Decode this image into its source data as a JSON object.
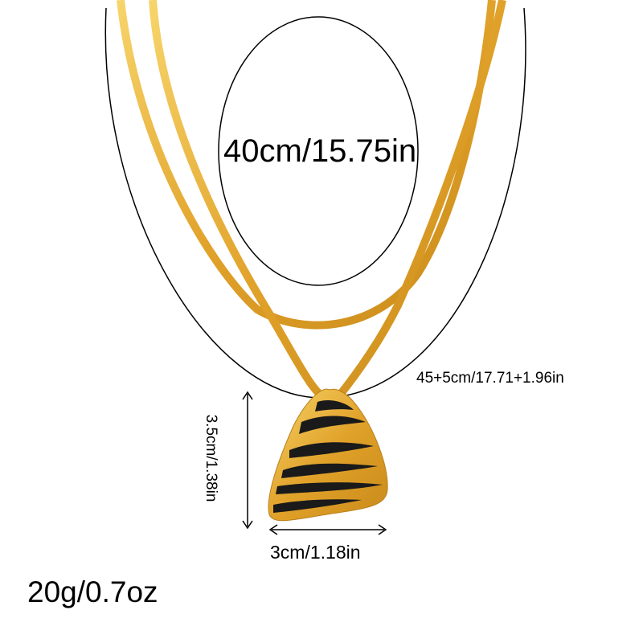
{
  "product": {
    "pendant_shape": "triangle-zebra",
    "colors": {
      "gold": "#e3a62a",
      "gold_light": "#f6cf5c",
      "stripe": "#1a1a1a"
    },
    "dimensions": {
      "inner_length": "40cm/15.75in",
      "outer_length": "45+5cm/17.71+1.96in",
      "pendant_height": "3.5cm/1.38in",
      "pendant_width": "3cm/1.18in",
      "weight": "20g/0.7oz"
    }
  }
}
